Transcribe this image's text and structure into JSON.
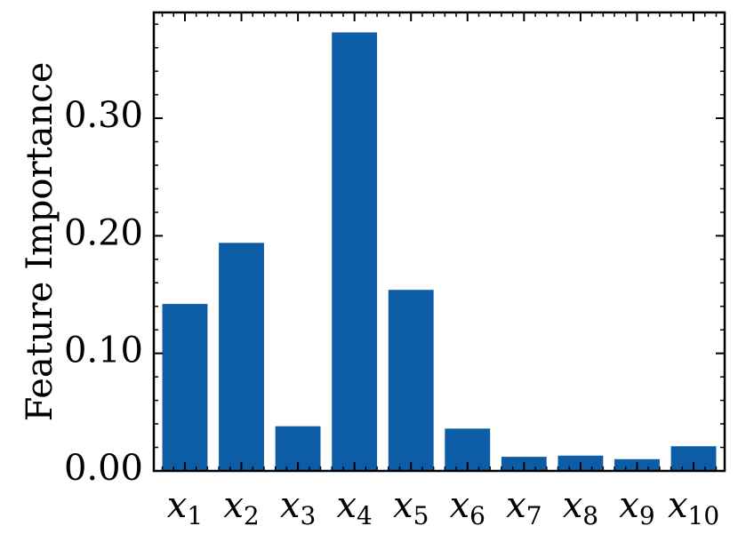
{
  "chart_data": {
    "type": "bar",
    "title": "",
    "xlabel": "",
    "ylabel": "Feature Importance",
    "categories": [
      {
        "base": "x",
        "sub": "1"
      },
      {
        "base": "x",
        "sub": "2"
      },
      {
        "base": "x",
        "sub": "3"
      },
      {
        "base": "x",
        "sub": "4"
      },
      {
        "base": "x",
        "sub": "5"
      },
      {
        "base": "x",
        "sub": "6"
      },
      {
        "base": "x",
        "sub": "7"
      },
      {
        "base": "x",
        "sub": "8"
      },
      {
        "base": "x",
        "sub": "9"
      },
      {
        "base": "x",
        "sub": "10"
      }
    ],
    "values": [
      0.142,
      0.194,
      0.038,
      0.373,
      0.154,
      0.036,
      0.012,
      0.013,
      0.01,
      0.021
    ],
    "ylim": [
      0,
      0.39
    ],
    "yticks": [
      0.0,
      0.1,
      0.2,
      0.3
    ],
    "ytick_labels": [
      "0.00",
      "0.10",
      "0.20",
      "0.30"
    ],
    "yminor_step": 0.02,
    "xlim": [
      -0.55,
      9.55
    ],
    "bar_color": "#0C5DA5",
    "grid": false,
    "legend": "none"
  }
}
